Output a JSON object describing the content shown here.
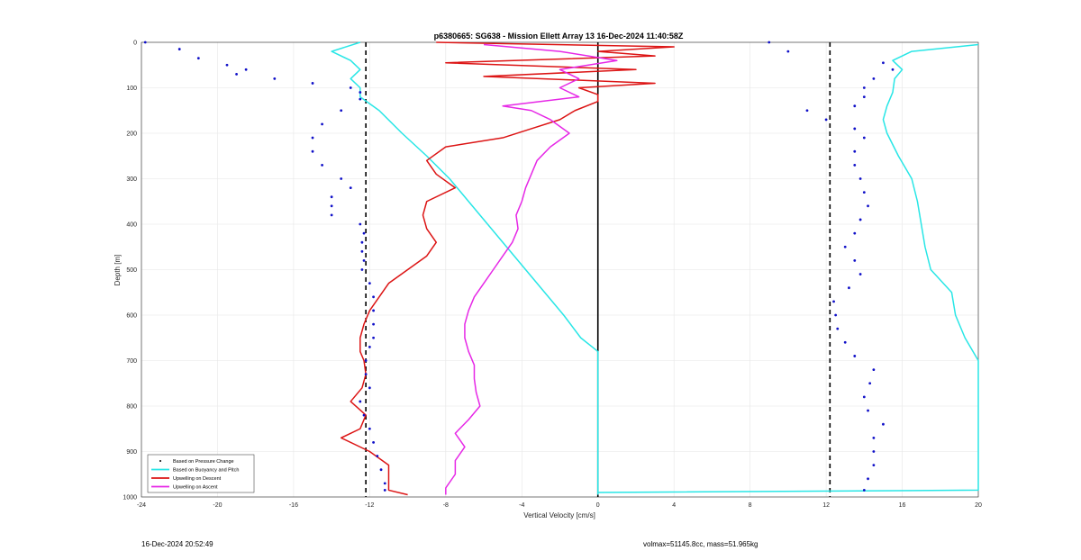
{
  "footer": {
    "left": "16-Dec-2024 20:52:49",
    "right": "volmax=51145.8cc, mass=51.965kg"
  },
  "chart_data": {
    "type": "line",
    "title": "p6380665: SG638 - Mission Ellett Array 13 16-Dec-2024 11:40:58Z",
    "xlabel": "Vertical Velocity [cm/s]",
    "ylabel": "Depth [m]",
    "xlim": [
      -24,
      20
    ],
    "ylim": [
      0,
      1000
    ],
    "y_reversed": true,
    "grid": true,
    "legend_position": "bottom-left",
    "xticks": [
      -24,
      -20,
      -16,
      -12,
      -8,
      -4,
      0,
      4,
      8,
      12,
      16,
      20
    ],
    "yticks": [
      0,
      100,
      200,
      300,
      400,
      500,
      600,
      700,
      800,
      900,
      1000
    ],
    "colors": {
      "pressure": "#1010c8",
      "buoyancy": "#28e6e6",
      "descent": "#dc1414",
      "ascent": "#e628e6",
      "reference": "#000000"
    },
    "reference_lines": [
      {
        "x": -12.2,
        "style": "dashed"
      },
      {
        "x": 12.2,
        "style": "dashed"
      },
      {
        "x": 0,
        "style": "solid",
        "depth_range": [
          0,
          1000
        ]
      }
    ],
    "series": [
      {
        "name": "Based on Pressure Change",
        "style": "dots",
        "segments": [
          {
            "depth": [
              0,
              15,
              35,
              50,
              60,
              70,
              80,
              90,
              100,
              110,
              125,
              150,
              180,
              210,
              240,
              270,
              300,
              320,
              340,
              360,
              380,
              400,
              420,
              440,
              460,
              480,
              500,
              530,
              560,
              590,
              620,
              650,
              670,
              700,
              730,
              760,
              790,
              820,
              850,
              880,
              910,
              940,
              970,
              985
            ],
            "velocity": [
              -23.8,
              -22,
              -21,
              -19.5,
              -18.5,
              -19,
              -17,
              -15,
              -13,
              -12.5,
              -12.5,
              -13.5,
              -14.5,
              -15,
              -15,
              -14.5,
              -13.5,
              -13,
              -14,
              -14,
              -14,
              -12.5,
              -12.3,
              -12.4,
              -12.4,
              -12.3,
              -12.4,
              -12,
              -11.8,
              -11.8,
              -11.8,
              -11.8,
              -12,
              -12.2,
              -12.2,
              -12,
              -12.5,
              -12.3,
              -12,
              -11.8,
              -11.6,
              -11.4,
              -11.2,
              -11.2
            ]
          },
          {
            "depth": [
              0,
              20,
              45,
              60,
              80,
              100,
              120,
              140,
              150,
              170,
              190,
              210,
              240,
              270,
              300,
              330,
              360,
              390,
              420,
              450,
              480,
              510,
              540,
              570,
              600,
              630,
              660,
              690,
              720,
              750,
              780,
              810,
              840,
              870,
              900,
              930,
              960,
              985
            ],
            "velocity": [
              9,
              10,
              15,
              15.5,
              14.5,
              14,
              14,
              13.5,
              11,
              12,
              13.5,
              14,
              13.5,
              13.5,
              13.8,
              14,
              14.2,
              13.8,
              13.5,
              13,
              13.5,
              13.8,
              13.2,
              12.4,
              12.5,
              12.6,
              13,
              13.5,
              14.5,
              14.3,
              14,
              14.2,
              15,
              14.5,
              14.5,
              14.5,
              14.2,
              14
            ]
          }
        ]
      },
      {
        "name": "Based on Buoyancy and Pitch",
        "style": "line",
        "segments": [
          {
            "depth": [
              0,
              20,
              40,
              60,
              80,
              100,
              120,
              150,
              200,
              250,
              300,
              350,
              400,
              450,
              500,
              550,
              600,
              650,
              670,
              680,
              990,
              995
            ],
            "velocity": [
              -12.5,
              -14,
              -13,
              -12.5,
              -13,
              -12.5,
              -12.5,
              -11.5,
              -10.3,
              -9,
              -7.8,
              -6.8,
              -5.8,
              -4.8,
              -3.8,
              -2.8,
              -1.8,
              -0.9,
              -0.3,
              0,
              0,
              0
            ]
          },
          {
            "depth": [
              990,
              985,
              900,
              800,
              700,
              650,
              600,
              550,
              500,
              450,
              400,
              350,
              300,
              250,
              200,
              170,
              140,
              110,
              80,
              60,
              40,
              20,
              5
            ],
            "velocity": [
              0,
              20,
              20,
              20,
              20,
              19.3,
              18.8,
              18.6,
              17.5,
              17.2,
              17,
              16.8,
              16.5,
              15.8,
              15.2,
              15,
              15.2,
              15.5,
              15.6,
              16,
              15.5,
              16.5,
              20
            ]
          }
        ]
      },
      {
        "name": "Upwelling on Descent",
        "style": "line",
        "segments": [
          {
            "depth": [
              0,
              10,
              20,
              30,
              45,
              60,
              75,
              90,
              100,
              115,
              130,
              150,
              170,
              190,
              210,
              230,
              260,
              290,
              320,
              350,
              380,
              410,
              440,
              470,
              500,
              530,
              560,
              590,
              620,
              650,
              680,
              700,
              730,
              760,
              790,
              820,
              850,
              870,
              900,
              930,
              960,
              985,
              995
            ],
            "velocity": [
              -8.5,
              4,
              0,
              3,
              -8,
              2,
              -6,
              3,
              -1,
              0,
              0,
              -1.2,
              -2,
              -3.5,
              -5,
              -8,
              -9,
              -8.5,
              -7.5,
              -9,
              -9.2,
              -9,
              -8.5,
              -9,
              -10,
              -11,
              -11.5,
              -12,
              -12.3,
              -12.5,
              -12.5,
              -12.3,
              -12.2,
              -12.4,
              -13,
              -12.2,
              -12.5,
              -13.5,
              -12,
              -11,
              -11,
              -11,
              -10
            ]
          }
        ]
      },
      {
        "name": "Upwelling on Ascent",
        "style": "line",
        "segments": [
          {
            "depth": [
              995,
              980,
              950,
              920,
              890,
              860,
              830,
              800,
              770,
              740,
              710,
              680,
              650,
              620,
              590,
              560,
              530,
              500,
              470,
              440,
              410,
              380,
              350,
              320,
              290,
              260,
              230,
              200,
              170,
              150,
              140,
              120,
              100,
              80,
              60,
              40,
              20,
              5
            ],
            "velocity": [
              -8,
              -8,
              -7.5,
              -7.5,
              -7,
              -7.5,
              -6.8,
              -6.2,
              -6.4,
              -6.5,
              -6.5,
              -6.8,
              -7,
              -7,
              -6.8,
              -6.5,
              -6,
              -5.5,
              -5,
              -4.5,
              -4.2,
              -4.3,
              -4,
              -3.8,
              -3.5,
              -3.2,
              -2.5,
              -1.5,
              -2.5,
              -3.5,
              -5,
              -1,
              -2,
              -1,
              -2,
              1,
              -2,
              -6
            ]
          }
        ]
      }
    ],
    "legend": [
      "Based on Pressure Change",
      "Based on Buoyancy and Pitch",
      "Upwelling on Descent",
      "Upwelling on Ascent"
    ]
  }
}
